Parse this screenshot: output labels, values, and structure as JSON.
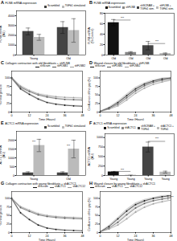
{
  "chart_data": [
    {
      "type": "bar",
      "panel_label": "A",
      "title": "FLNB mRNA expression",
      "categories": [
        "Young",
        "Old"
      ],
      "series": [
        {
          "name": "Scrambled",
          "color": "#444444",
          "values": [
            2400,
            2800
          ],
          "errors": [
            350,
            600
          ]
        },
        {
          "name": "TGFb1 stimulated",
          "color": "#bbbbbb",
          "values": [
            1800,
            2500
          ],
          "errors": [
            300,
            1200
          ]
        }
      ],
      "ylabel": "FLNB mRNA\n(AU)",
      "ylim": [
        0,
        4500
      ],
      "yticks": [
        0,
        1000,
        2000,
        3000,
        4000
      ],
      "legend": "upper right",
      "grid": false
    },
    {
      "type": "bar",
      "panel_label": "B",
      "title": "FLNB mRNA expression",
      "categories": [
        "Old",
        "Old",
        "Old",
        "Old"
      ],
      "series": [
        {
          "name": "Scrambled",
          "color": "#111111",
          "values": [
            62,
            null,
            null,
            null
          ],
          "errors": [
            6,
            null,
            null,
            null
          ]
        },
        {
          "name": "shFLNB",
          "color": "#888888",
          "values": [
            null,
            5,
            null,
            null
          ],
          "errors": [
            null,
            1.5,
            null,
            null
          ]
        },
        {
          "name": "shSCRAM +\nTGFb1 stim.",
          "color": "#444444",
          "values": [
            null,
            null,
            18,
            null
          ],
          "errors": [
            null,
            null,
            8,
            null
          ]
        },
        {
          "name": "shFLNB +\nTGFb1 stim.",
          "color": "#bbbbbb",
          "values": [
            null,
            null,
            null,
            3
          ],
          "errors": [
            null,
            null,
            null,
            1
          ]
        }
      ],
      "ylabel": "FLNB mRNA\n(% Control)",
      "ylim": [
        0,
        80
      ],
      "yticks": [
        0,
        20,
        40,
        60,
        80
      ],
      "annotations": [
        {
          "text": "***",
          "between": [
            0,
            1
          ],
          "line_y": 67,
          "y": 69
        },
        {
          "text": "***",
          "between": [
            2,
            3
          ],
          "line_y": 22,
          "y": 24
        }
      ],
      "legend": "upper right",
      "grid": false
    },
    {
      "type": "line",
      "panel_label": "C",
      "title": "Collagen contraction with old fibroblasts + shFLNB",
      "xlabel": "Time (Hours)",
      "ylabel": "% initial gel size",
      "x": [
        0,
        6,
        12,
        18,
        24,
        30,
        36,
        42,
        48
      ],
      "series": [
        {
          "name": "shScram",
          "color": "#111111",
          "marker": "circle",
          "values": [
            100,
            68,
            52,
            38,
            28,
            23,
            20,
            18,
            17
          ],
          "errors": [
            4,
            4,
            3,
            3,
            2,
            2,
            2,
            2,
            2
          ]
        },
        {
          "name": "shFLNB1",
          "color": "#555555",
          "marker": "square",
          "values": [
            100,
            73,
            60,
            50,
            44,
            40,
            37,
            36,
            35
          ],
          "errors": [
            4,
            4,
            3,
            3,
            3,
            3,
            2,
            2,
            2
          ]
        },
        {
          "name": "shFLNB2",
          "color": "#999999",
          "marker": "triangle",
          "values": [
            100,
            76,
            63,
            53,
            48,
            45,
            43,
            42,
            41
          ],
          "errors": [
            4,
            4,
            3,
            3,
            3,
            2,
            2,
            2,
            2
          ]
        }
      ],
      "xlim": [
        0,
        48
      ],
      "xticks": [
        0,
        12,
        24,
        36,
        48
      ],
      "ylim": [
        0,
        120
      ],
      "yticks": [
        0,
        25,
        50,
        75,
        100
      ],
      "legend": "upper right",
      "grid": false
    },
    {
      "type": "line",
      "panel_label": "D",
      "title": "Wound closure by old fibroblasts + shFLNB",
      "xlabel": "Time (Hours)",
      "ylabel": "Confluence of the gap (%)",
      "x": [
        0,
        6,
        12,
        18,
        24,
        30,
        36,
        42,
        48
      ],
      "series": [
        {
          "name": "shScram",
          "color": "#111111",
          "marker": "circle",
          "values": [
            2,
            12,
            28,
            48,
            68,
            82,
            91,
            97,
            100
          ],
          "errors": [
            1,
            3,
            4,
            5,
            5,
            4,
            3,
            3,
            2
          ]
        },
        {
          "name": "shFLNB1",
          "color": "#555555",
          "marker": "square",
          "values": [
            2,
            10,
            23,
            42,
            62,
            77,
            87,
            93,
            97
          ],
          "errors": [
            1,
            3,
            4,
            5,
            5,
            4,
            3,
            3,
            2
          ]
        },
        {
          "name": "shFLNB2",
          "color": "#999999",
          "marker": "triangle",
          "values": [
            2,
            8,
            18,
            35,
            55,
            70,
            81,
            88,
            93
          ],
          "errors": [
            1,
            2,
            3,
            4,
            5,
            4,
            3,
            3,
            2
          ]
        }
      ],
      "xlim": [
        0,
        48
      ],
      "xticks": [
        0,
        12,
        24,
        36,
        48
      ],
      "ylim": [
        0,
        120
      ],
      "yticks": [
        0,
        25,
        50,
        75,
        100
      ],
      "legend": "upper left",
      "grid": false
    },
    {
      "type": "bar",
      "panel_label": "E",
      "title": "ACTC1 mRNA expression",
      "categories": [
        "Young",
        "Old"
      ],
      "series": [
        {
          "name": "Scrambled",
          "color": "#444444",
          "values": [
            150,
            150
          ],
          "errors": [
            60,
            60
          ]
        },
        {
          "name": "TGFb1 stimulated",
          "color": "#bbbbbb",
          "values": [
            1700,
            1500
          ],
          "errors": [
            350,
            500
          ]
        }
      ],
      "ylabel": "ACTC1 mRNA\n(AU)",
      "ylim": [
        0,
        2500
      ],
      "yticks": [
        0,
        500,
        1000,
        1500,
        2000
      ],
      "annotations": [
        {
          "text": "***",
          "category": "Young",
          "y": 1820
        },
        {
          "text": "***",
          "category": "Old",
          "y": 1620
        }
      ],
      "legend": "upper right",
      "grid": false
    },
    {
      "type": "bar",
      "panel_label": "F",
      "title": "ACTC1 mRNA expression",
      "categories": [
        "Young",
        "Young",
        "Young",
        "Young"
      ],
      "series": [
        {
          "name": "Scrambled",
          "color": "#111111",
          "values": [
            95,
            null,
            null,
            null
          ],
          "errors": [
            12,
            null,
            null,
            null
          ]
        },
        {
          "name": "shACTC1",
          "color": "#888888",
          "values": [
            null,
            5,
            null,
            null
          ],
          "errors": [
            null,
            1.5,
            null,
            null
          ]
        },
        {
          "name": "shSCRAM +\nTGFb1",
          "color": "#444444",
          "values": [
            null,
            null,
            750,
            null
          ],
          "errors": [
            null,
            null,
            130,
            null
          ]
        },
        {
          "name": "shACTC1 +\nTGFb1",
          "color": "#bbbbbb",
          "values": [
            null,
            null,
            null,
            90
          ],
          "errors": [
            null,
            null,
            null,
            25
          ]
        }
      ],
      "ylabel": "ACTC1 mRNA\n(AU)",
      "ylim": [
        0,
        1100
      ],
      "yticks": [
        0,
        250,
        500,
        750,
        1000
      ],
      "annotations": [
        {
          "text": "***",
          "between": [
            0,
            1
          ],
          "line_y": 108,
          "y": 115
        },
        {
          "text": "***",
          "between": [
            2,
            3
          ],
          "line_y": 900,
          "y": 950
        }
      ],
      "legend": "upper right",
      "grid": false
    },
    {
      "type": "line",
      "panel_label": "G",
      "title": "Collagen contraction with young fibroblasts + shACTC1",
      "xlabel": "Time (Hours)",
      "ylabel": "% initial gel size",
      "x": [
        0,
        6,
        12,
        18,
        24,
        30,
        36,
        42,
        48
      ],
      "series": [
        {
          "name": "shScram",
          "color": "#111111",
          "marker": "circle",
          "values": [
            100,
            58,
            38,
            22,
            13,
            9,
            7,
            6,
            5
          ],
          "errors": [
            4,
            4,
            3,
            3,
            2,
            2,
            1,
            1,
            1
          ]
        },
        {
          "name": "shACTC1",
          "color": "#555555",
          "marker": "square",
          "values": [
            100,
            73,
            62,
            52,
            47,
            44,
            42,
            41,
            40
          ],
          "errors": [
            4,
            3,
            3,
            3,
            2,
            2,
            2,
            2,
            2
          ]
        },
        {
          "name": "shACTC12",
          "color": "#999999",
          "marker": "triangle",
          "values": [
            100,
            76,
            65,
            55,
            50,
            47,
            45,
            44,
            43
          ],
          "errors": [
            4,
            3,
            3,
            3,
            2,
            2,
            2,
            2,
            2
          ]
        }
      ],
      "xlim": [
        0,
        48
      ],
      "xticks": [
        0,
        12,
        24,
        36,
        48
      ],
      "ylim": [
        0,
        120
      ],
      "yticks": [
        0,
        25,
        50,
        75,
        100
      ],
      "legend": "upper right",
      "grid": false
    },
    {
      "type": "line",
      "panel_label": "H",
      "title": "Wound closure by young fibroblasts + shACTC1",
      "xlabel": "Time (Hours)",
      "ylabel": "Confluence of the gap (%)",
      "x": [
        0,
        6,
        12,
        18,
        24,
        30,
        36,
        42,
        48
      ],
      "series": [
        {
          "name": "shScram",
          "color": "#111111",
          "marker": "circle",
          "values": [
            2,
            18,
            40,
            63,
            82,
            93,
            100,
            105,
            108
          ],
          "errors": [
            1,
            3,
            4,
            5,
            5,
            4,
            3,
            3,
            2
          ]
        },
        {
          "name": "shACTC1",
          "color": "#555555",
          "marker": "square",
          "values": [
            2,
            13,
            30,
            52,
            72,
            85,
            93,
            98,
            102
          ],
          "errors": [
            1,
            3,
            4,
            5,
            5,
            4,
            3,
            3,
            2
          ]
        },
        {
          "name": "shACTC12",
          "color": "#999999",
          "marker": "triangle",
          "values": [
            2,
            10,
            22,
            40,
            60,
            74,
            84,
            90,
            95
          ],
          "errors": [
            1,
            2,
            3,
            4,
            5,
            4,
            3,
            3,
            2
          ]
        }
      ],
      "xlim": [
        0,
        48
      ],
      "xticks": [
        0,
        12,
        24,
        36,
        48
      ],
      "ylim": [
        0,
        120
      ],
      "yticks": [
        0,
        25,
        50,
        75,
        100
      ],
      "annotations": [
        {
          "text": "***",
          "x": 47.5,
          "y": 101,
          "bracket": {
            "x": 46,
            "y": [
              95,
              108
            ]
          }
        }
      ],
      "legend": "upper left",
      "grid": false
    }
  ]
}
